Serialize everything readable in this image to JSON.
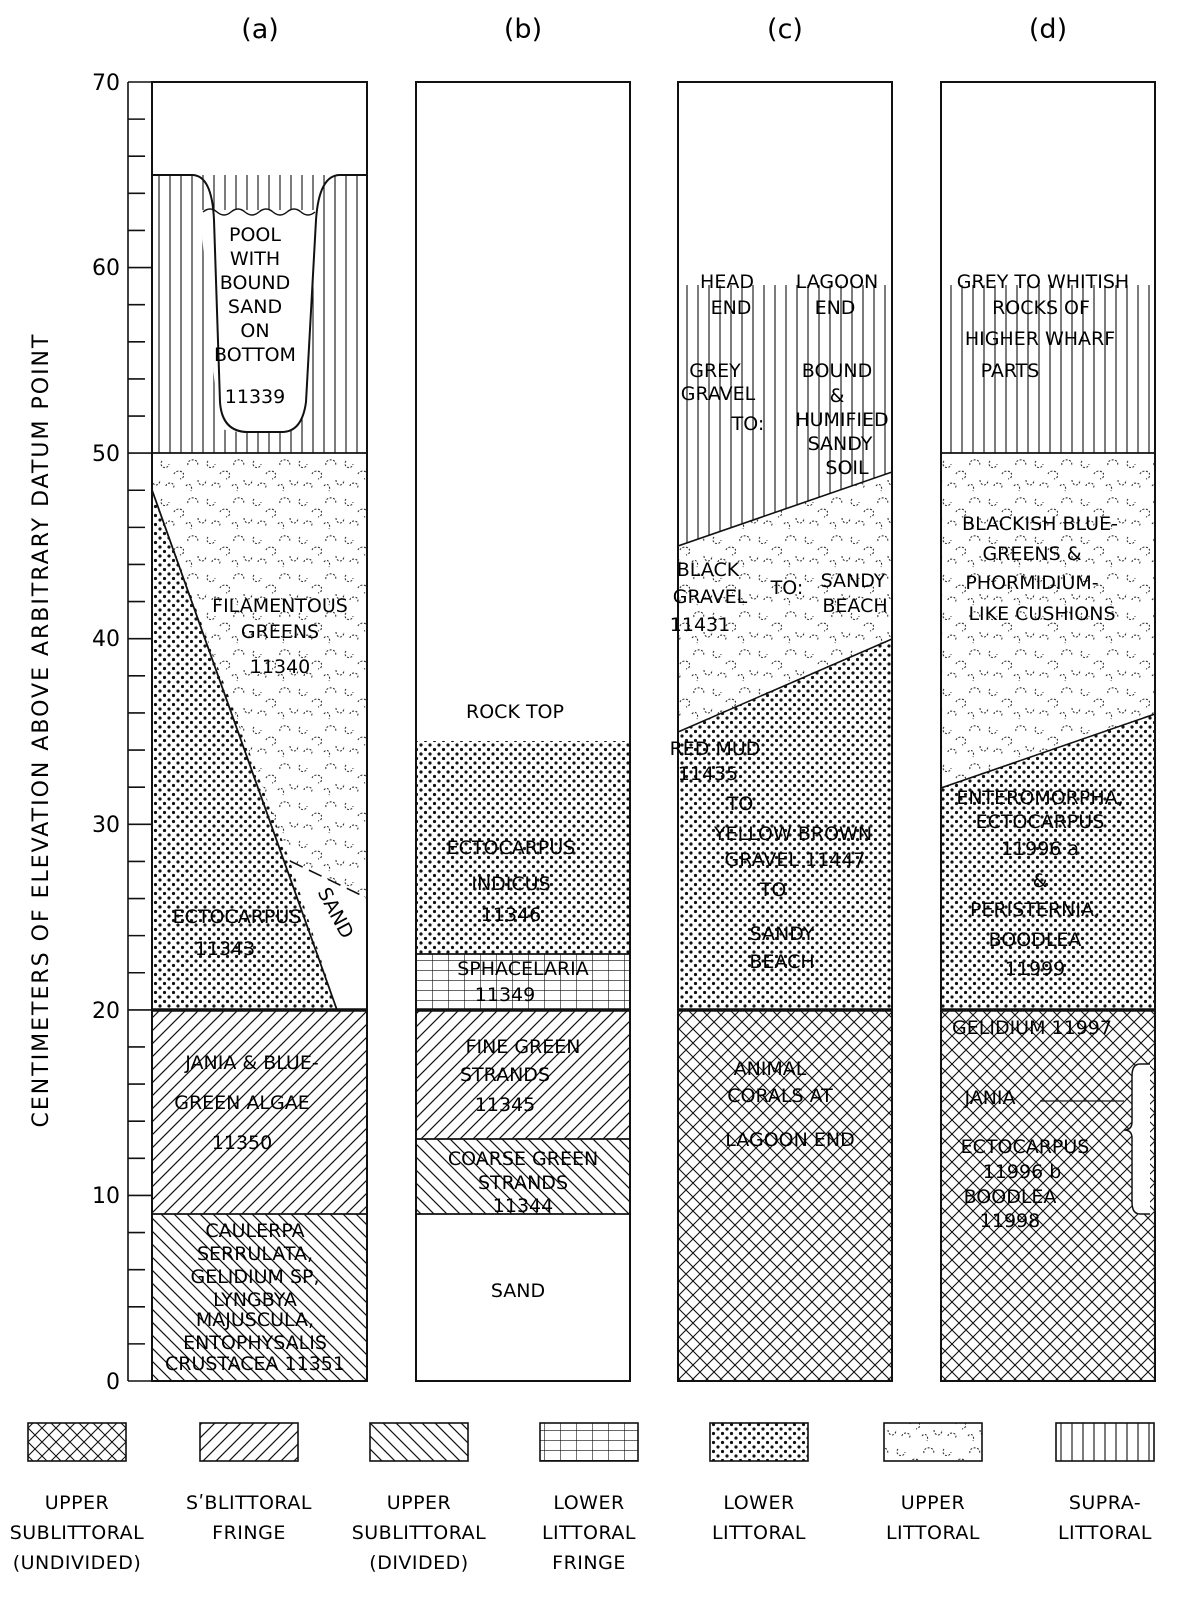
{
  "figure": {
    "y_axis_label": "CENTIMETERS OF ELEVATION ABOVE ARBITRARY DATUM POINT",
    "y_ticks": [
      "0",
      "10",
      "20",
      "30",
      "40",
      "50",
      "60",
      "70"
    ],
    "panels": [
      {
        "letter": "(a)",
        "zones": [
          {
            "range_cm": [
              0,
              9
            ],
            "zone": "upper-sublittoral-divided",
            "lines": [
              "CAULERPA",
              "SERRULATA,",
              "GELIDIUM SP,",
              "LYNGBYA",
              "MAJUSCULA,",
              "ENTOPHYSALIS",
              "CRUSTACEA 11351"
            ]
          },
          {
            "range_cm": [
              9,
              20
            ],
            "zone": "sublittoral-fringe",
            "lines": [
              "JANIA & BLUE-",
              "GREEN ALGAE",
              "11350"
            ]
          },
          {
            "range_cm": [
              20,
              50
            ],
            "zone": "lower-littoral",
            "lines": [
              "ECTOCARPUS",
              "11343"
            ]
          },
          {
            "range_cm": [
              20,
              50
            ],
            "zone": "upper-littoral",
            "lines": [
              "FILAMENTOUS",
              "GREENS",
              "11340"
            ]
          },
          {
            "range_cm": [
              20,
              28
            ],
            "zone": "none",
            "lines": [
              "SAND"
            ]
          },
          {
            "range_cm": [
              50,
              65
            ],
            "zone": "supra-littoral",
            "lines": [
              "POOL",
              "WITH",
              "BOUND",
              "SAND",
              "ON",
              "BOTTOM",
              "11339"
            ]
          }
        ]
      },
      {
        "letter": "(b)",
        "zones": [
          {
            "range_cm": [
              0,
              9
            ],
            "zone": "none",
            "lines": [
              "SAND"
            ]
          },
          {
            "range_cm": [
              9,
              13
            ],
            "zone": "upper-sublittoral-divided",
            "lines": [
              "COARSE GREEN",
              "STRANDS",
              "11344"
            ]
          },
          {
            "range_cm": [
              13,
              20
            ],
            "zone": "sublittoral-fringe",
            "lines": [
              "FINE GREEN",
              "STRANDS",
              "11345"
            ]
          },
          {
            "range_cm": [
              20,
              23
            ],
            "zone": "lower-littoral-fringe",
            "lines": [
              "SPHACELARIA",
              "11349"
            ]
          },
          {
            "range_cm": [
              23,
              34.5
            ],
            "zone": "lower-littoral",
            "lines": [
              "ECTOCARPUS",
              "INDICUS",
              "11346"
            ]
          },
          {
            "range_cm": [
              34.5,
              37
            ],
            "zone": "none",
            "lines": [
              "ROCK TOP"
            ]
          }
        ]
      },
      {
        "letter": "(c)",
        "zones": [
          {
            "range_cm": [
              0,
              20
            ],
            "zone": "upper-sublittoral-undivided",
            "lines": [
              "ANIMAL",
              "CORALS AT",
              "LAGOON END"
            ]
          },
          {
            "range_cm": [
              20,
              40
            ],
            "zone": "lower-littoral",
            "lines": [
              "RED MUD",
              "11435",
              "TO",
              "YELLOW BROWN",
              "GRAVEL 11447",
              "TO",
              "SANDY",
              "BEACH"
            ]
          },
          {
            "range_cm": [
              35,
              49
            ],
            "zone": "upper-littoral",
            "lines": [
              "BLACK",
              "GRAVEL",
              "11431",
              "TO:",
              "SANDY",
              "BEACH"
            ]
          },
          {
            "range_cm": [
              45,
              59
            ],
            "zone": "supra-littoral",
            "lines": [
              "HEAD",
              "END",
              "LAGOON",
              "END",
              "GREY",
              "GRAVEL",
              "TO:",
              "BOUND",
              "&",
              "HUMIFIED",
              "SANDY",
              "SOIL"
            ]
          }
        ]
      },
      {
        "letter": "(d)",
        "zones": [
          {
            "range_cm": [
              0,
              20
            ],
            "zone": "upper-sublittoral-undivided",
            "lines": [
              "GELIDIUM 11997",
              "JANIA",
              "ECTOCARPUS",
              "11996 b",
              "BOODLEA",
              "11998"
            ]
          },
          {
            "range_cm": [
              20,
              36
            ],
            "zone": "lower-littoral",
            "lines": [
              "ENTEROMORPHA,",
              "ECTOCARPUS",
              "11996 a",
              "&",
              "PERISTERNIA,",
              "BOODLEA",
              "11999"
            ]
          },
          {
            "range_cm": [
              32,
              50
            ],
            "zone": "upper-littoral",
            "lines": [
              "BLACKISH BLUE-",
              "GREENS &",
              "PHORMIDIUM-",
              "LIKE CUSHIONS"
            ]
          },
          {
            "range_cm": [
              50,
              59
            ],
            "zone": "supra-littoral",
            "lines": [
              "GREY TO WHITISH",
              "ROCKS OF",
              "HIGHER WHARF",
              "PARTS"
            ]
          }
        ]
      }
    ],
    "legend": [
      {
        "pattern": "crosshatch",
        "lines": [
          "UPPER",
          "SUBLITTORAL",
          "(UNDIVIDED)"
        ]
      },
      {
        "pattern": "diagonal-right",
        "lines": [
          "SʹBLITTORAL",
          "FRINGE"
        ]
      },
      {
        "pattern": "diagonal-left",
        "lines": [
          "UPPER",
          "SUBLITTORAL",
          "(DIVIDED)"
        ]
      },
      {
        "pattern": "grid",
        "lines": [
          "LOWER",
          "LITTORAL",
          "FRINGE"
        ]
      },
      {
        "pattern": "dots",
        "lines": [
          "LOWER",
          "LITTORAL"
        ]
      },
      {
        "pattern": "pebbles",
        "lines": [
          "UPPER",
          "LITTORAL"
        ]
      },
      {
        "pattern": "vertical",
        "lines": [
          "SUPRA-",
          "LITTORAL"
        ]
      }
    ]
  }
}
